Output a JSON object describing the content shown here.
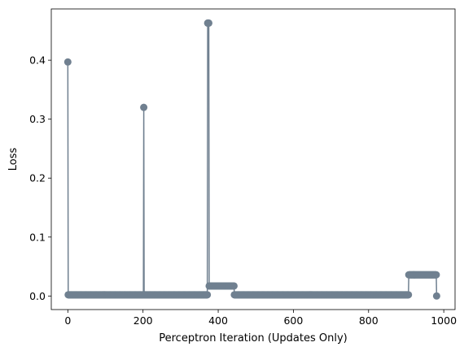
{
  "chart_data": {
    "type": "line",
    "title": "",
    "xlabel": "Perceptron Iteration (Updates Only)",
    "ylabel": "Loss",
    "xlim": [
      -44,
      1030
    ],
    "ylim": [
      -0.023,
      0.487
    ],
    "xticks": [
      0,
      200,
      400,
      600,
      800,
      1000
    ],
    "yticks": [
      0.0,
      0.1,
      0.2,
      0.3,
      0.4
    ],
    "ytick_labels": [
      "0.0",
      "0.1",
      "0.2",
      "0.3",
      "0.4"
    ],
    "grid": false,
    "legend": "none",
    "color": "#708090",
    "marker": "circle",
    "segments": [
      {
        "from": 0,
        "to": 0,
        "value": 0.397
      },
      {
        "from": 1,
        "to": 201,
        "value": 0.002
      },
      {
        "from": 202,
        "to": 202,
        "value": 0.32
      },
      {
        "from": 203,
        "to": 371,
        "value": 0.002
      },
      {
        "from": 372,
        "to": 375,
        "value": 0.463
      },
      {
        "from": 376,
        "to": 442,
        "value": 0.017
      },
      {
        "from": 443,
        "to": 906,
        "value": 0.002
      },
      {
        "from": 907,
        "to": 980,
        "value": 0.036
      },
      {
        "from": 981,
        "to": 981,
        "value": 0.0
      }
    ]
  }
}
